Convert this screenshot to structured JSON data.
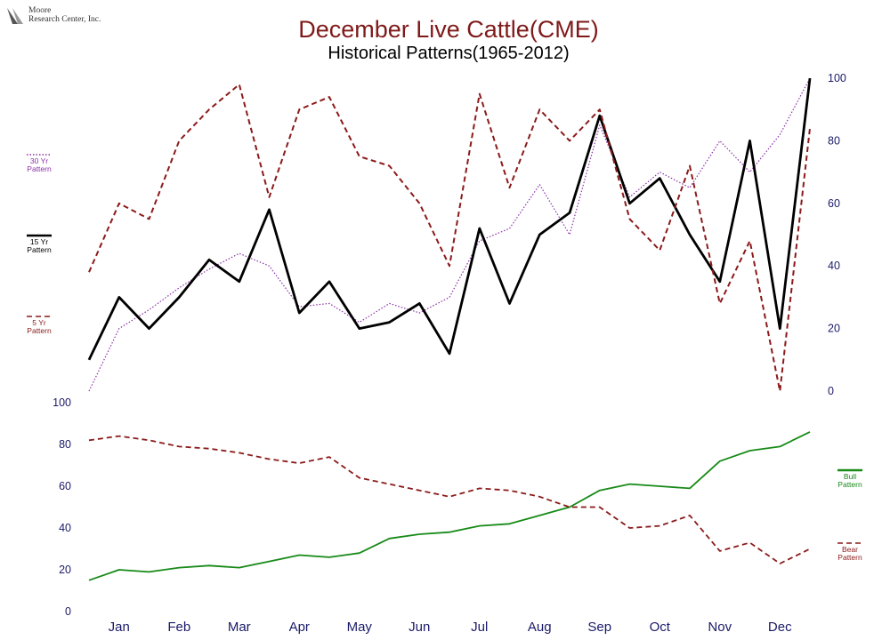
{
  "logo": {
    "line1": "Moore",
    "line2": "Research Center, Inc."
  },
  "header": {
    "title": "December Live Cattle(CME)",
    "subtitle": "Historical Patterns(1965-2012)"
  },
  "colors": {
    "title": "#7f1a1a",
    "axis_text": "#1a1a6a",
    "pattern_30yr": "#8b2fa8",
    "pattern_15yr": "#000000",
    "pattern_5yr": "#8b1a1a",
    "bull": "#178a17",
    "bear": "#8b1a1a"
  },
  "chart_data": [
    {
      "type": "line",
      "title": "",
      "xlabel": "",
      "ylabel": "",
      "x": [
        0,
        0.5,
        1,
        1.5,
        2,
        2.5,
        3,
        3.5,
        4,
        4.5,
        5,
        5.5,
        6,
        6.5,
        7,
        7.5,
        8,
        8.5,
        9,
        9.5,
        10,
        10.5,
        11,
        11.5,
        12
      ],
      "x_tick_labels": [
        "Jan",
        "Feb",
        "Mar",
        "Apr",
        "May",
        "Jun",
        "Jul",
        "Aug",
        "Sep",
        "Oct",
        "Nov",
        "Dec"
      ],
      "ylim": [
        0,
        100
      ],
      "y_ticks": [
        0,
        20,
        40,
        60,
        80,
        100
      ],
      "y_axis_side": "right",
      "series": [
        {
          "name": "30 Yr Pattern",
          "style": "dotted",
          "color_key": "pattern_30yr",
          "values": [
            0,
            20,
            26,
            33,
            39,
            44,
            40,
            27,
            28,
            22,
            28,
            25,
            30,
            48,
            52,
            66,
            50,
            85,
            62,
            70,
            65,
            80,
            70,
            82,
            100
          ]
        },
        {
          "name": "15 Yr Pattern",
          "style": "solid",
          "color_key": "pattern_15yr",
          "values": [
            10,
            30,
            20,
            30,
            42,
            35,
            58,
            25,
            35,
            20,
            22,
            28,
            12,
            52,
            28,
            50,
            57,
            88,
            60,
            68,
            50,
            35,
            80,
            20,
            100
          ]
        },
        {
          "name": "5 Yr Pattern",
          "style": "dashed",
          "color_key": "pattern_5yr",
          "values": [
            38,
            60,
            55,
            80,
            90,
            98,
            62,
            90,
            94,
            75,
            72,
            60,
            40,
            95,
            65,
            90,
            80,
            90,
            55,
            45,
            72,
            28,
            48,
            0,
            84
          ]
        }
      ]
    },
    {
      "type": "line",
      "title": "",
      "xlabel": "",
      "ylabel": "",
      "x": [
        0,
        0.5,
        1,
        1.5,
        2,
        2.5,
        3,
        3.5,
        4,
        4.5,
        5,
        5.5,
        6,
        6.5,
        7,
        7.5,
        8,
        8.5,
        9,
        9.5,
        10,
        10.5,
        11,
        11.5,
        12
      ],
      "x_tick_labels": [
        "Jan",
        "Feb",
        "Mar",
        "Apr",
        "May",
        "Jun",
        "Jul",
        "Aug",
        "Sep",
        "Oct",
        "Nov",
        "Dec"
      ],
      "ylim": [
        0,
        100
      ],
      "y_ticks": [
        0,
        20,
        40,
        60,
        80,
        100
      ],
      "y_axis_side": "left",
      "series": [
        {
          "name": "Bull Pattern",
          "style": "solid",
          "color_key": "bull",
          "values": [
            15,
            20,
            19,
            21,
            22,
            21,
            24,
            27,
            26,
            28,
            35,
            37,
            38,
            41,
            42,
            46,
            50,
            58,
            61,
            60,
            59,
            72,
            77,
            79,
            86
          ]
        },
        {
          "name": "Bear Pattern",
          "style": "dashed",
          "color_key": "bear",
          "values": [
            82,
            84,
            82,
            79,
            78,
            76,
            73,
            71,
            74,
            64,
            61,
            58,
            55,
            59,
            58,
            55,
            50,
            50,
            40,
            41,
            46,
            29,
            33,
            23,
            30
          ]
        }
      ]
    }
  ],
  "legends": {
    "top": [
      {
        "line1": "30 Yr",
        "line2": "Pattern",
        "color_key": "pattern_30yr",
        "style": "dotted"
      },
      {
        "line1": "15 Yr",
        "line2": "Pattern",
        "color_key": "pattern_15yr",
        "style": "solid"
      },
      {
        "line1": "5 Yr",
        "line2": "Pattern",
        "color_key": "pattern_5yr",
        "style": "dashed"
      }
    ],
    "bottom": [
      {
        "line1": "Bull",
        "line2": "Pattern",
        "color_key": "bull",
        "style": "solid"
      },
      {
        "line1": "Bear",
        "line2": "Pattern",
        "color_key": "bear",
        "style": "dashed"
      }
    ]
  }
}
